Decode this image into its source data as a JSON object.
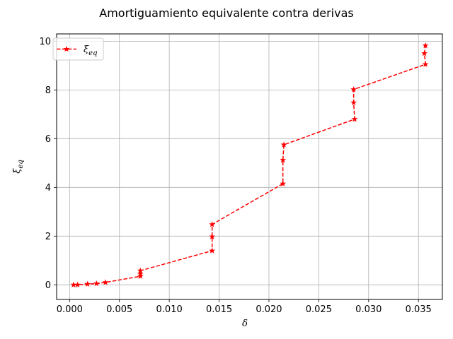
{
  "chart_data": {
    "type": "line",
    "title": "Amortiguamiento equivalente contra derivas",
    "xlabel": "δ",
    "ylabel": {
      "base": "ξ",
      "sub": "eq"
    },
    "xlim": [
      -0.0013,
      0.0374
    ],
    "ylim": [
      -0.6,
      10.3
    ],
    "xticks": [
      0.0,
      0.005,
      0.01,
      0.015,
      0.02,
      0.025,
      0.03,
      0.035
    ],
    "xtick_labels": [
      "0.000",
      "0.005",
      "0.010",
      "0.015",
      "0.020",
      "0.025",
      "0.030",
      "0.035"
    ],
    "yticks": [
      0,
      2,
      4,
      6,
      8,
      10
    ],
    "ytick_labels": [
      "0",
      "2",
      "4",
      "6",
      "8",
      "10"
    ],
    "grid": true,
    "legend_position": "top-left",
    "series": [
      {
        "name": {
          "base": "ξ",
          "sub": "eq"
        },
        "color": "#ff0000",
        "line_style": "dashed",
        "marker": "star",
        "x": [
          0.0004,
          0.0008,
          0.0018,
          0.0027,
          0.0036,
          0.0071,
          0.0071,
          0.0071,
          0.0143,
          0.0143,
          0.0143,
          0.0214,
          0.0214,
          0.0215,
          0.0286,
          0.0285,
          0.0285,
          0.0357,
          0.0356,
          0.0357
        ],
        "y": [
          0.0,
          0.0,
          0.03,
          0.05,
          0.1,
          0.35,
          0.45,
          0.58,
          1.4,
          1.98,
          2.48,
          4.15,
          5.12,
          5.75,
          6.8,
          7.48,
          8.02,
          9.05,
          9.5,
          9.82
        ]
      }
    ]
  }
}
